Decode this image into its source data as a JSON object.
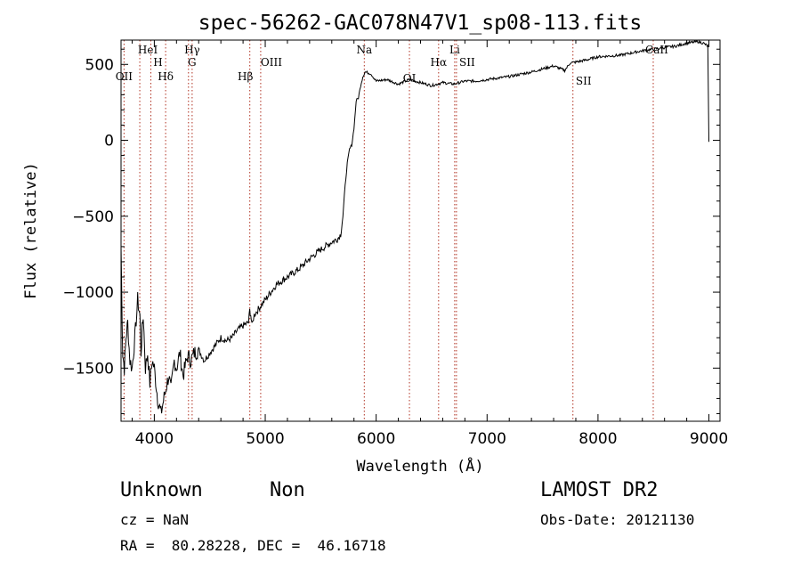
{
  "chart_data": {
    "type": "line",
    "title": "spec-56262-GAC078N47V1_sp08-113.fits",
    "xlabel": "Wavelength (Å)",
    "ylabel": "Flux (relative)",
    "xlim": [
      3700,
      9100
    ],
    "ylim": [
      -1850,
      660
    ],
    "x_ticks": [
      "4000",
      "5000",
      "6000",
      "7000",
      "8000",
      "9000"
    ],
    "y_ticks": [
      "500",
      "0",
      "−500",
      "−1000",
      "−1500"
    ],
    "grid": false,
    "series": [
      {
        "x": [
          3700,
          3715,
          3730,
          3745,
          3760,
          3780,
          3800,
          3830,
          3850,
          3870,
          3880,
          3890,
          3900,
          3920,
          3940,
          3960,
          3980,
          4000,
          4030,
          4060,
          4100,
          4130,
          4150,
          4180,
          4200,
          4230,
          4260,
          4300,
          4330,
          4360,
          4400,
          4450,
          4500,
          4550,
          4600,
          4650,
          4700,
          4750,
          4800,
          4850,
          4860,
          4870,
          4880,
          4900,
          4950,
          5000,
          5100,
          5200,
          5300,
          5400,
          5500,
          5600,
          5650,
          5680,
          5700,
          5720,
          5740,
          5760,
          5780,
          5800,
          5820,
          5840,
          5860,
          5880,
          5900,
          5950,
          6000,
          6100,
          6200,
          6300,
          6400,
          6500,
          6600,
          6700,
          6800,
          6900,
          7000,
          7200,
          7400,
          7600,
          7700,
          7750,
          7800,
          7900,
          8000,
          8200,
          8400,
          8500,
          8600,
          8700,
          8800,
          8900,
          8950,
          8990,
          9000
        ],
        "y": [
          -700,
          -1400,
          -1500,
          -1300,
          -1200,
          -1450,
          -1500,
          -1250,
          -1050,
          -1150,
          -1400,
          -1250,
          -1150,
          -1500,
          -1400,
          -1600,
          -1450,
          -1500,
          -1700,
          -1800,
          -1650,
          -1550,
          -1650,
          -1450,
          -1500,
          -1400,
          -1550,
          -1420,
          -1450,
          -1400,
          -1380,
          -1450,
          -1400,
          -1350,
          -1300,
          -1320,
          -1300,
          -1250,
          -1220,
          -1200,
          -1120,
          -1150,
          -1220,
          -1150,
          -1100,
          -1050,
          -950,
          -900,
          -850,
          -780,
          -720,
          -670,
          -650,
          -620,
          -500,
          -300,
          -150,
          -60,
          -30,
          80,
          260,
          280,
          360,
          420,
          450,
          440,
          390,
          400,
          370,
          400,
          380,
          360,
          380,
          370,
          390,
          390,
          400,
          420,
          450,
          490,
          460,
          510,
          515,
          530,
          550,
          560,
          590,
          600,
          610,
          620,
          640,
          650,
          640,
          620,
          -10
        ]
      }
    ],
    "reference_lines": [
      {
        "wavelength": 3727,
        "label": "OII"
      },
      {
        "wavelength": 3869,
        "label": "HeI"
      },
      {
        "wavelength": 3969,
        "label": "H"
      },
      {
        "wavelength": 4102,
        "label": "Hδ"
      },
      {
        "wavelength": 4308,
        "label": "G"
      },
      {
        "wavelength": 4341,
        "label": "Hγ"
      },
      {
        "wavelength": 4861,
        "label": "Hβ"
      },
      {
        "wavelength": 4959,
        "label": "OIII"
      },
      {
        "wavelength": 5893,
        "label": "Na"
      },
      {
        "wavelength": 6300,
        "label": "OI"
      },
      {
        "wavelength": 6563,
        "label": "Hα"
      },
      {
        "wavelength": 6708,
        "label": "Li"
      },
      {
        "wavelength": 6724,
        "label": "SII"
      },
      {
        "wavelength": 7774,
        "label": "SII"
      },
      {
        "wavelength": 8498,
        "label": "CaII"
      }
    ],
    "colors": {
      "spectrum": "#000000",
      "reference_line": "#b03020"
    }
  },
  "info": {
    "object_class": "Unknown",
    "subclass": "Non",
    "survey": "LAMOST DR2",
    "redshift": "cz = NaN",
    "obs_date": "Obs-Date: 20121130",
    "coords": "RA =  80.28228, DEC =  46.16718"
  }
}
